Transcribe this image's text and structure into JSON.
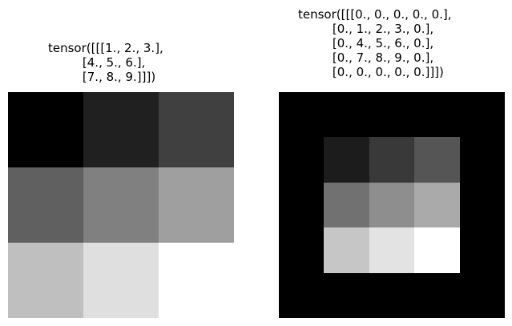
{
  "figures": [
    {
      "title_lines": [
        "tensor([[[1., 2., 3.],",
        "         [4., 5., 6.],",
        "         [7., 8., 9.]]])"
      ],
      "values": [
        [
          1,
          2,
          3
        ],
        [
          4,
          5,
          6
        ],
        [
          7,
          8,
          9
        ]
      ],
      "colormap": "gray"
    },
    {
      "title_lines": [
        "tensor([[[0., 0., 0., 0., 0.],",
        "         [0., 1., 2., 3., 0.],",
        "         [0., 4., 5., 6., 0.],",
        "         [0., 7., 8., 9., 0.],",
        "         [0., 0., 0., 0., 0.]]])"
      ],
      "values": [
        [
          0,
          0,
          0,
          0,
          0
        ],
        [
          0,
          1,
          2,
          3,
          0
        ],
        [
          0,
          4,
          5,
          6,
          0
        ],
        [
          0,
          7,
          8,
          9,
          0
        ],
        [
          0,
          0,
          0,
          0,
          0
        ]
      ],
      "colormap": "gray"
    }
  ]
}
